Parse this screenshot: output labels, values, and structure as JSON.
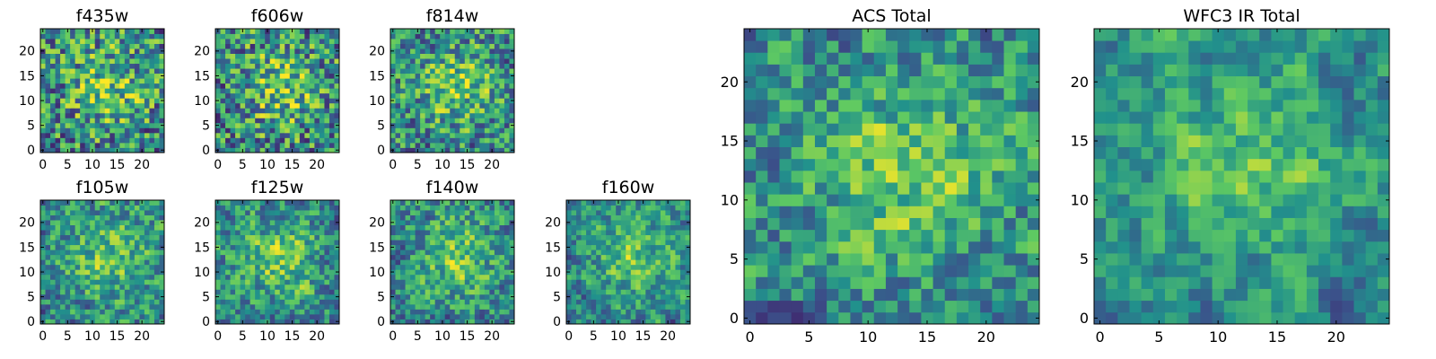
{
  "chart_data": [
    {
      "type": "heatmap",
      "title": "f435w",
      "x_ticks": [
        0,
        5,
        10,
        15,
        20
      ],
      "y_ticks": [
        0,
        5,
        10,
        15,
        20
      ],
      "xlim": [
        0,
        25
      ],
      "ylim": [
        0,
        25
      ],
      "grid": false,
      "colormap": "viridis",
      "z_range": [
        0,
        1
      ],
      "cmap_stops": [
        "#440154",
        "#3b528b",
        "#21918c",
        "#5ec962",
        "#fde725"
      ],
      "z_grid_seed": 11,
      "smoothing": 0.0
    },
    {
      "type": "heatmap",
      "title": "f606w",
      "x_ticks": [
        0,
        5,
        10,
        15,
        20
      ],
      "y_ticks": [
        0,
        5,
        10,
        15,
        20
      ],
      "xlim": [
        0,
        25
      ],
      "ylim": [
        0,
        25
      ],
      "grid": false,
      "colormap": "viridis",
      "z_range": [
        0,
        1
      ],
      "cmap_stops": [
        "#440154",
        "#3b528b",
        "#21918c",
        "#5ec962",
        "#fde725"
      ],
      "z_grid_seed": 23,
      "smoothing": 0.0
    },
    {
      "type": "heatmap",
      "title": "f814w",
      "x_ticks": [
        0,
        5,
        10,
        15,
        20
      ],
      "y_ticks": [
        0,
        5,
        10,
        15,
        20
      ],
      "xlim": [
        0,
        25
      ],
      "ylim": [
        0,
        25
      ],
      "grid": false,
      "colormap": "viridis",
      "z_range": [
        0,
        1
      ],
      "cmap_stops": [
        "#440154",
        "#3b528b",
        "#21918c",
        "#5ec962",
        "#fde725"
      ],
      "z_grid_seed": 37,
      "smoothing": 0.15
    },
    {
      "type": "heatmap",
      "title": "f105w",
      "x_ticks": [
        0,
        5,
        10,
        15,
        20
      ],
      "y_ticks": [
        0,
        5,
        10,
        15,
        20
      ],
      "xlim": [
        0,
        25
      ],
      "ylim": [
        0,
        25
      ],
      "grid": false,
      "colormap": "viridis",
      "z_range": [
        0,
        1
      ],
      "cmap_stops": [
        "#440154",
        "#3b528b",
        "#21918c",
        "#5ec962",
        "#fde725"
      ],
      "z_grid_seed": 41,
      "smoothing": 0.35
    },
    {
      "type": "heatmap",
      "title": "f125w",
      "x_ticks": [
        0,
        5,
        10,
        15,
        20
      ],
      "y_ticks": [
        0,
        5,
        10,
        15,
        20
      ],
      "xlim": [
        0,
        25
      ],
      "ylim": [
        0,
        25
      ],
      "grid": false,
      "colormap": "viridis",
      "z_range": [
        0,
        1
      ],
      "cmap_stops": [
        "#440154",
        "#3b528b",
        "#21918c",
        "#5ec962",
        "#fde725"
      ],
      "z_grid_seed": 53,
      "smoothing": 0.35
    },
    {
      "type": "heatmap",
      "title": "f140w",
      "x_ticks": [
        0,
        5,
        10,
        15,
        20
      ],
      "y_ticks": [
        0,
        5,
        10,
        15,
        20
      ],
      "xlim": [
        0,
        25
      ],
      "ylim": [
        0,
        25
      ],
      "grid": false,
      "colormap": "viridis",
      "z_range": [
        0,
        1
      ],
      "cmap_stops": [
        "#440154",
        "#3b528b",
        "#21918c",
        "#5ec962",
        "#fde725"
      ],
      "z_grid_seed": 67,
      "smoothing": 0.35
    },
    {
      "type": "heatmap",
      "title": "f160w",
      "x_ticks": [
        0,
        5,
        10,
        15,
        20
      ],
      "y_ticks": [
        0,
        5,
        10,
        15,
        20
      ],
      "xlim": [
        0,
        25
      ],
      "ylim": [
        0,
        25
      ],
      "grid": false,
      "colormap": "viridis",
      "z_range": [
        0,
        1
      ],
      "cmap_stops": [
        "#440154",
        "#3b528b",
        "#21918c",
        "#5ec962",
        "#fde725"
      ],
      "z_grid_seed": 79,
      "smoothing": 0.45
    },
    {
      "type": "heatmap",
      "title": "ACS Total",
      "x_ticks": [
        0,
        5,
        10,
        15,
        20
      ],
      "y_ticks": [
        0,
        5,
        10,
        15,
        20
      ],
      "xlim": [
        0,
        25
      ],
      "ylim": [
        0,
        25
      ],
      "grid": false,
      "colormap": "viridis",
      "z_range": [
        0,
        1
      ],
      "cmap_stops": [
        "#440154",
        "#3b528b",
        "#21918c",
        "#5ec962",
        "#fde725"
      ],
      "z_grid_seed": 97,
      "smoothing": 0.4
    },
    {
      "type": "heatmap",
      "title": "WFC3 IR Total",
      "x_ticks": [
        0,
        5,
        10,
        15,
        20
      ],
      "y_ticks": [
        0,
        5,
        10,
        15,
        20
      ],
      "xlim": [
        0,
        25
      ],
      "ylim": [
        0,
        25
      ],
      "grid": false,
      "colormap": "viridis",
      "z_range": [
        0,
        1
      ],
      "cmap_stops": [
        "#440154",
        "#3b528b",
        "#21918c",
        "#5ec962",
        "#fde725"
      ],
      "z_grid_seed": 131,
      "smoothing": 0.6
    }
  ]
}
